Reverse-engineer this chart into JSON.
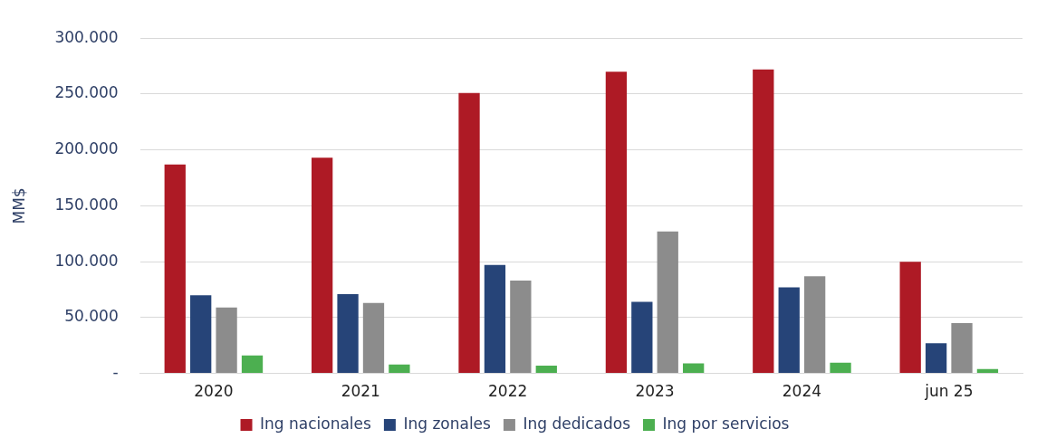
{
  "chart_data": {
    "type": "bar",
    "ylabel": "MM$",
    "categories": [
      "2020",
      "2021",
      "2022",
      "2023",
      "2024",
      "jun 25"
    ],
    "series": [
      {
        "name": "Ing nacionales",
        "color": "#ae1a25",
        "values": [
          187000,
          193000,
          251000,
          270000,
          272000,
          100000
        ]
      },
      {
        "name": "Ing zonales",
        "color": "#264478",
        "values": [
          70000,
          71000,
          97000,
          64000,
          77000,
          27000
        ]
      },
      {
        "name": "Ing dedicados",
        "color": "#8c8c8c",
        "values": [
          59000,
          63000,
          83000,
          127000,
          87000,
          45000
        ]
      },
      {
        "name": "Ing por servicios",
        "color": "#4caf50",
        "values": [
          16000,
          8000,
          7000,
          9000,
          9500,
          4000
        ]
      }
    ],
    "ylim": [
      0,
      300000
    ],
    "yticks": [
      {
        "value": 0,
        "label": "-"
      },
      {
        "value": 50000,
        "label": "50.000"
      },
      {
        "value": 100000,
        "label": "100.000"
      },
      {
        "value": 150000,
        "label": "150.000"
      },
      {
        "value": 200000,
        "label": "200.000"
      },
      {
        "value": 250000,
        "label": "250.000"
      },
      {
        "value": 300000,
        "label": "300.000"
      }
    ],
    "grid": "y",
    "legend": "bottom"
  }
}
